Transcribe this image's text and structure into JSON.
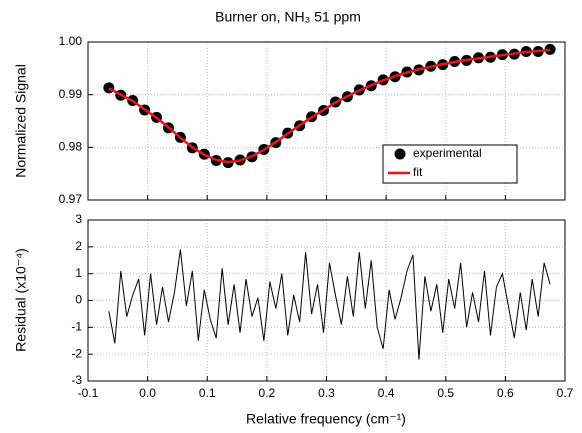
{
  "chart_data": [
    {
      "type": "line",
      "title": "Burner on, NH₃ 51 ppm",
      "ylabel": "Normalized Signal",
      "xlim": [
        -0.1,
        0.7
      ],
      "ylim": [
        0.97,
        1.0
      ],
      "yticks": [
        0.97,
        0.98,
        0.99,
        {
          "value": 1.0,
          "label": "1.00"
        }
      ],
      "grid": true,
      "legend": "lower right",
      "x": [
        -0.065,
        -0.045,
        -0.025,
        -0.005,
        0.015,
        0.035,
        0.055,
        0.075,
        0.095,
        0.115,
        0.135,
        0.155,
        0.175,
        0.195,
        0.215,
        0.235,
        0.255,
        0.275,
        0.295,
        0.315,
        0.335,
        0.355,
        0.375,
        0.395,
        0.415,
        0.435,
        0.455,
        0.475,
        0.495,
        0.515,
        0.535,
        0.555,
        0.575,
        0.595,
        0.615,
        0.635,
        0.655,
        0.675
      ],
      "series": [
        {
          "name": "experimental",
          "color": "#000000",
          "style": "markers",
          "values": [
            0.9913,
            0.9899,
            0.9889,
            0.9871,
            0.9857,
            0.9837,
            0.9819,
            0.9799,
            0.9787,
            0.9775,
            0.9771,
            0.9776,
            0.9782,
            0.9796,
            0.9809,
            0.9827,
            0.9841,
            0.9858,
            0.987,
            0.9886,
            0.9896,
            0.9909,
            0.9917,
            0.9928,
            0.9934,
            0.9943,
            0.9947,
            0.9954,
            0.9957,
            0.9963,
            0.9965,
            0.997,
            0.9971,
            0.9976,
            0.9977,
            0.9982,
            0.9982,
            0.9986
          ]
        },
        {
          "name": "fit",
          "color": "#e8141c",
          "style": "line",
          "values": [
            0.9912,
            0.99,
            0.9888,
            0.9872,
            0.9856,
            0.9838,
            0.9818,
            0.98,
            0.9786,
            0.9776,
            0.9772,
            0.9775,
            0.9783,
            0.9795,
            0.981,
            0.9826,
            0.9842,
            0.9857,
            0.9871,
            0.9885,
            0.9897,
            0.9908,
            0.9918,
            0.9927,
            0.9935,
            0.9942,
            0.9948,
            0.9953,
            0.9958,
            0.9962,
            0.9966,
            0.9969,
            0.9972,
            0.9975,
            0.9978,
            0.9981,
            0.9983,
            0.9985
          ]
        }
      ]
    },
    {
      "type": "line",
      "ylabel": "Residual  (x10⁻⁴)",
      "xlabel": "Relative frequency (cm⁻¹)",
      "xlim": [
        -0.1,
        0.7
      ],
      "ylim": [
        -3,
        3
      ],
      "xticks": [
        -0.1,
        {
          "value": 0,
          "label": "0.0"
        },
        0.1,
        0.2,
        0.3,
        0.4,
        0.5,
        0.6,
        0.7
      ],
      "yticks": [
        -3,
        -2,
        -1,
        0,
        1,
        2,
        3
      ],
      "grid": true,
      "x": [
        -0.065,
        -0.055,
        -0.045,
        -0.035,
        -0.025,
        -0.015,
        -0.005,
        0.005,
        0.015,
        0.025,
        0.035,
        0.045,
        0.055,
        0.065,
        0.075,
        0.085,
        0.095,
        0.105,
        0.115,
        0.125,
        0.135,
        0.145,
        0.155,
        0.165,
        0.175,
        0.185,
        0.195,
        0.205,
        0.215,
        0.225,
        0.235,
        0.245,
        0.255,
        0.265,
        0.275,
        0.285,
        0.295,
        0.305,
        0.315,
        0.325,
        0.335,
        0.345,
        0.355,
        0.365,
        0.375,
        0.385,
        0.395,
        0.405,
        0.415,
        0.425,
        0.435,
        0.445,
        0.455,
        0.465,
        0.475,
        0.485,
        0.495,
        0.505,
        0.515,
        0.525,
        0.535,
        0.545,
        0.555,
        0.565,
        0.575,
        0.585,
        0.595,
        0.605,
        0.615,
        0.625,
        0.635,
        0.645,
        0.655,
        0.665,
        0.675
      ],
      "series": [
        {
          "color": "#000000",
          "style": "line",
          "values": [
            -0.4,
            -1.6,
            1.1,
            -0.6,
            0.2,
            0.8,
            -1.3,
            1.0,
            -0.9,
            0.5,
            -0.8,
            0.3,
            1.9,
            -0.2,
            1.1,
            -1.5,
            0.4,
            -0.7,
            -1.4,
            1.2,
            -0.9,
            0.6,
            -1.2,
            0.8,
            -0.6,
            0.1,
            -1.5,
            0.7,
            -0.3,
            1.0,
            -1.3,
            0.2,
            -0.8,
            1.8,
            -0.5,
            0.6,
            -1.2,
            1.4,
            0.2,
            -0.9,
            0.9,
            -0.6,
            1.8,
            -0.3,
            1.5,
            -1.0,
            -1.8,
            0.4,
            -0.7,
            0.1,
            1.1,
            1.7,
            -2.2,
            0.9,
            -0.4,
            0.6,
            -1.2,
            0.8,
            -0.3,
            1.4,
            -1.0,
            0.3,
            -0.8,
            1.1,
            -1.3,
            0.5,
            1.0,
            -0.2,
            -1.4,
            0.3,
            -1.1,
            0.8,
            -0.6,
            1.4,
            0.6
          ]
        }
      ]
    }
  ]
}
